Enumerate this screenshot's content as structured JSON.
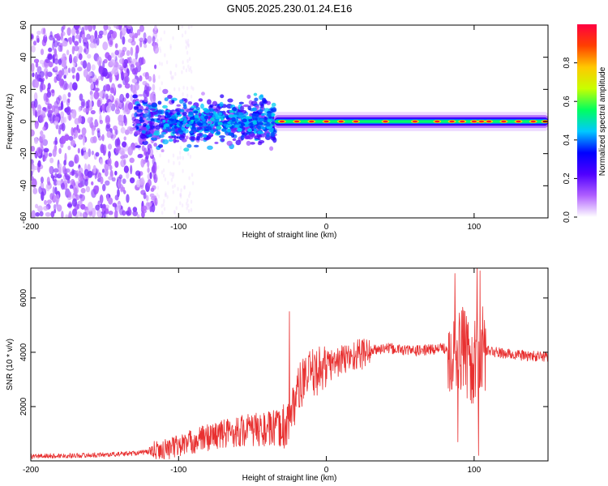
{
  "chart_data": [
    {
      "type": "heatmap",
      "title": "GN05.2025.230.01.24.E16",
      "xlabel": "Height of straight line (km)",
      "ylabel": "Frequency (Hz)",
      "xlim": [
        -200,
        150
      ],
      "ylim": [
        -60,
        60
      ],
      "x_ticks": [
        -200,
        -100,
        0,
        100
      ],
      "y_ticks": [
        -60,
        -40,
        -20,
        0,
        20,
        40,
        60
      ],
      "colorbar": {
        "label": "Normalized spectral amplitude",
        "range": [
          0,
          1
        ],
        "ticks": [
          0.0,
          0.2,
          0.4,
          0.6,
          0.8
        ],
        "tick_labels": [
          "0.0",
          "0.2",
          "0.4",
          "0.6",
          "0.8"
        ],
        "colormap": [
          "#ffffff",
          "#b060ff",
          "#5000ff",
          "#0000ff",
          "#00c8ff",
          "#00ff60",
          "#c8ff00",
          "#ffc800",
          "#ff4000",
          "#ff0040"
        ]
      },
      "regions": [
        {
          "x_range": [
            -200,
            -115
          ],
          "freq_range": [
            -60,
            60
          ],
          "amplitude": 0.12,
          "pattern": "scattered noise"
        },
        {
          "x_range": [
            -130,
            -35
          ],
          "freq_range": [
            -15,
            15
          ],
          "amplitude": 0.3,
          "pattern": "broad band"
        },
        {
          "x_range": [
            -35,
            150
          ],
          "freq_range": [
            -4,
            4
          ],
          "amplitude": 0.55,
          "pattern": "narrow band near 0 Hz"
        }
      ],
      "hot_spots_x": [
        -30,
        -20,
        -10,
        0,
        10,
        20,
        40,
        60,
        75,
        85,
        92,
        100,
        105,
        110,
        120,
        130,
        140,
        148
      ]
    },
    {
      "type": "line",
      "xlabel": "Height of straight line (km)",
      "ylabel": "SNR (10 * v/v)",
      "xlim": [
        -200,
        150
      ],
      "ylim": [
        0,
        7100
      ],
      "x_ticks": [
        -200,
        -100,
        0,
        100
      ],
      "y_ticks": [
        2000,
        4000,
        6000
      ],
      "color": "#e83030",
      "x": [
        -200,
        -180,
        -160,
        -140,
        -120,
        -110,
        -100,
        -90,
        -80,
        -70,
        -60,
        -50,
        -40,
        -30,
        -25,
        -20,
        -15,
        -10,
        0,
        10,
        20,
        30,
        40,
        50,
        60,
        70,
        80,
        85,
        88,
        90,
        95,
        100,
        103,
        105,
        110,
        120,
        130,
        140,
        150
      ],
      "y": [
        170,
        190,
        210,
        250,
        330,
        420,
        560,
        720,
        880,
        1000,
        1100,
        1150,
        1150,
        1200,
        1500,
        2500,
        3000,
        3200,
        3500,
        3700,
        3900,
        4050,
        4150,
        4100,
        4050,
        4100,
        4150,
        4100,
        3800,
        4200,
        3900,
        3500,
        3800,
        4100,
        4050,
        3950,
        3900,
        3850,
        3850
      ],
      "spikes": [
        {
          "x": -25,
          "y": 5500
        },
        {
          "x": 87,
          "y": 6900
        },
        {
          "x": 96,
          "y": 5100
        },
        {
          "x": 102,
          "y": 7100
        },
        {
          "x": 104,
          "y": 7000
        },
        {
          "x": 89,
          "y": 700
        },
        {
          "x": 103,
          "y": 200
        }
      ]
    }
  ]
}
